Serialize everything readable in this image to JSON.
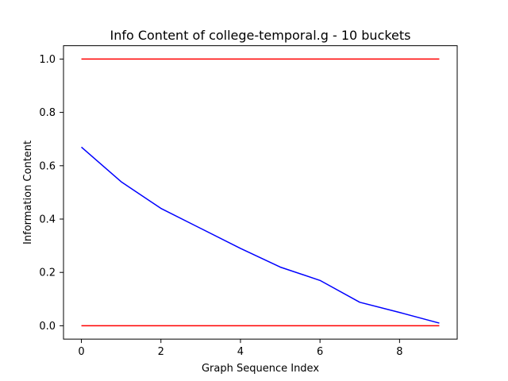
{
  "chart_data": {
    "type": "line",
    "title": "Info Content of college-temporal.g - 10 buckets",
    "xlabel": "Graph Sequence Index",
    "ylabel": "Information Content",
    "xlim": [
      -0.45,
      9.45
    ],
    "ylim": [
      -0.05,
      1.05
    ],
    "grid": false,
    "x_ticks": [
      0,
      2,
      4,
      6,
      8
    ],
    "x_tick_labels": [
      "0",
      "2",
      "4",
      "6",
      "8"
    ],
    "y_ticks": [
      0.0,
      0.2,
      0.4,
      0.6,
      0.8,
      1.0
    ],
    "y_tick_labels": [
      "0.0",
      "0.2",
      "0.4",
      "0.6",
      "0.8",
      "1.0"
    ],
    "series": [
      {
        "name": "information-content",
        "color": "#0000ff",
        "x": [
          0,
          1,
          2,
          3,
          4,
          5,
          6,
          7,
          8,
          9
        ],
        "values": [
          0.67,
          0.54,
          0.44,
          0.365,
          0.29,
          0.22,
          0.17,
          0.088,
          0.05,
          0.01
        ]
      },
      {
        "name": "upper-bound",
        "color": "#ff0000",
        "x": [
          0,
          9
        ],
        "values": [
          1.0,
          1.0
        ]
      },
      {
        "name": "lower-bound",
        "color": "#ff0000",
        "x": [
          0,
          9
        ],
        "values": [
          0.0,
          0.0
        ]
      }
    ]
  }
}
